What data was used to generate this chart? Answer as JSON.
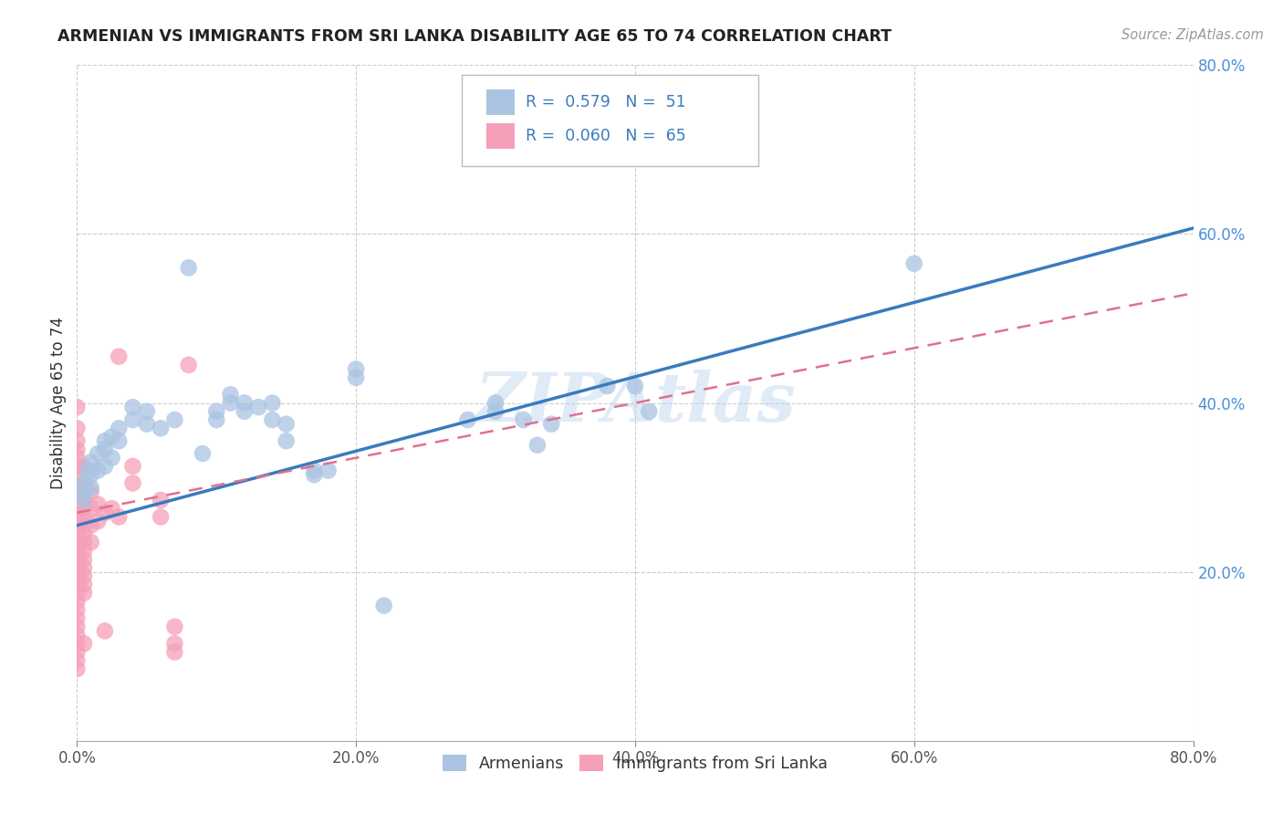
{
  "title": "ARMENIAN VS IMMIGRANTS FROM SRI LANKA DISABILITY AGE 65 TO 74 CORRELATION CHART",
  "source": "Source: ZipAtlas.com",
  "ylabel": "Disability Age 65 to 74",
  "xlim": [
    0.0,
    0.8
  ],
  "ylim": [
    0.0,
    0.8
  ],
  "xtick_labels": [
    "0.0%",
    "20.0%",
    "40.0%",
    "60.0%",
    "80.0%"
  ],
  "xtick_vals": [
    0.0,
    0.2,
    0.4,
    0.6,
    0.8
  ],
  "ytick_labels": [
    "20.0%",
    "40.0%",
    "60.0%",
    "80.0%"
  ],
  "ytick_vals": [
    0.2,
    0.4,
    0.6,
    0.8
  ],
  "armenian_R": 0.579,
  "armenian_N": 51,
  "srilanka_R": 0.06,
  "srilanka_N": 65,
  "armenian_color": "#aac4e2",
  "srilanka_color": "#f5a0b8",
  "armenian_line_color": "#3a7abf",
  "srilanka_line_color": "#e07090",
  "watermark": "ZIPAtlas",
  "legend_armenian": "Armenians",
  "legend_srilanka": "Immigrants from Sri Lanka",
  "arm_line": [
    0.0,
    0.255,
    0.8,
    0.607
  ],
  "sri_line": [
    0.0,
    0.27,
    0.8,
    0.53
  ],
  "armenian_scatter": [
    [
      0.005,
      0.295
    ],
    [
      0.005,
      0.285
    ],
    [
      0.005,
      0.305
    ],
    [
      0.008,
      0.32
    ],
    [
      0.01,
      0.33
    ],
    [
      0.01,
      0.315
    ],
    [
      0.01,
      0.3
    ],
    [
      0.015,
      0.32
    ],
    [
      0.015,
      0.34
    ],
    [
      0.02,
      0.355
    ],
    [
      0.02,
      0.345
    ],
    [
      0.02,
      0.325
    ],
    [
      0.025,
      0.36
    ],
    [
      0.025,
      0.335
    ],
    [
      0.03,
      0.37
    ],
    [
      0.03,
      0.355
    ],
    [
      0.04,
      0.395
    ],
    [
      0.04,
      0.38
    ],
    [
      0.05,
      0.39
    ],
    [
      0.05,
      0.375
    ],
    [
      0.06,
      0.37
    ],
    [
      0.07,
      0.38
    ],
    [
      0.08,
      0.56
    ],
    [
      0.09,
      0.34
    ],
    [
      0.1,
      0.38
    ],
    [
      0.1,
      0.39
    ],
    [
      0.11,
      0.4
    ],
    [
      0.11,
      0.41
    ],
    [
      0.12,
      0.4
    ],
    [
      0.12,
      0.39
    ],
    [
      0.13,
      0.395
    ],
    [
      0.14,
      0.4
    ],
    [
      0.14,
      0.38
    ],
    [
      0.15,
      0.375
    ],
    [
      0.15,
      0.355
    ],
    [
      0.17,
      0.32
    ],
    [
      0.17,
      0.315
    ],
    [
      0.18,
      0.32
    ],
    [
      0.2,
      0.44
    ],
    [
      0.2,
      0.43
    ],
    [
      0.28,
      0.38
    ],
    [
      0.3,
      0.39
    ],
    [
      0.3,
      0.4
    ],
    [
      0.32,
      0.38
    ],
    [
      0.33,
      0.35
    ],
    [
      0.34,
      0.375
    ],
    [
      0.38,
      0.42
    ],
    [
      0.4,
      0.42
    ],
    [
      0.41,
      0.39
    ],
    [
      0.6,
      0.565
    ],
    [
      0.22,
      0.16
    ]
  ],
  "srilanka_scatter": [
    [
      0.0,
      0.395
    ],
    [
      0.0,
      0.37
    ],
    [
      0.0,
      0.355
    ],
    [
      0.0,
      0.345
    ],
    [
      0.0,
      0.335
    ],
    [
      0.0,
      0.325
    ],
    [
      0.0,
      0.31
    ],
    [
      0.0,
      0.3
    ],
    [
      0.0,
      0.295
    ],
    [
      0.0,
      0.285
    ],
    [
      0.0,
      0.275
    ],
    [
      0.0,
      0.265
    ],
    [
      0.0,
      0.255
    ],
    [
      0.0,
      0.245
    ],
    [
      0.0,
      0.235
    ],
    [
      0.0,
      0.225
    ],
    [
      0.0,
      0.215
    ],
    [
      0.0,
      0.205
    ],
    [
      0.0,
      0.195
    ],
    [
      0.0,
      0.185
    ],
    [
      0.0,
      0.175
    ],
    [
      0.0,
      0.165
    ],
    [
      0.0,
      0.155
    ],
    [
      0.0,
      0.145
    ],
    [
      0.0,
      0.135
    ],
    [
      0.0,
      0.125
    ],
    [
      0.0,
      0.115
    ],
    [
      0.0,
      0.105
    ],
    [
      0.0,
      0.095
    ],
    [
      0.0,
      0.085
    ],
    [
      0.005,
      0.325
    ],
    [
      0.005,
      0.305
    ],
    [
      0.005,
      0.295
    ],
    [
      0.005,
      0.285
    ],
    [
      0.005,
      0.275
    ],
    [
      0.005,
      0.265
    ],
    [
      0.005,
      0.255
    ],
    [
      0.005,
      0.245
    ],
    [
      0.005,
      0.235
    ],
    [
      0.005,
      0.225
    ],
    [
      0.005,
      0.215
    ],
    [
      0.005,
      0.205
    ],
    [
      0.005,
      0.195
    ],
    [
      0.005,
      0.185
    ],
    [
      0.005,
      0.175
    ],
    [
      0.005,
      0.115
    ],
    [
      0.01,
      0.295
    ],
    [
      0.01,
      0.275
    ],
    [
      0.01,
      0.255
    ],
    [
      0.01,
      0.235
    ],
    [
      0.015,
      0.28
    ],
    [
      0.015,
      0.26
    ],
    [
      0.02,
      0.27
    ],
    [
      0.02,
      0.13
    ],
    [
      0.025,
      0.275
    ],
    [
      0.03,
      0.265
    ],
    [
      0.03,
      0.455
    ],
    [
      0.04,
      0.325
    ],
    [
      0.04,
      0.305
    ],
    [
      0.06,
      0.285
    ],
    [
      0.06,
      0.265
    ],
    [
      0.07,
      0.135
    ],
    [
      0.07,
      0.115
    ],
    [
      0.07,
      0.105
    ],
    [
      0.08,
      0.445
    ]
  ]
}
